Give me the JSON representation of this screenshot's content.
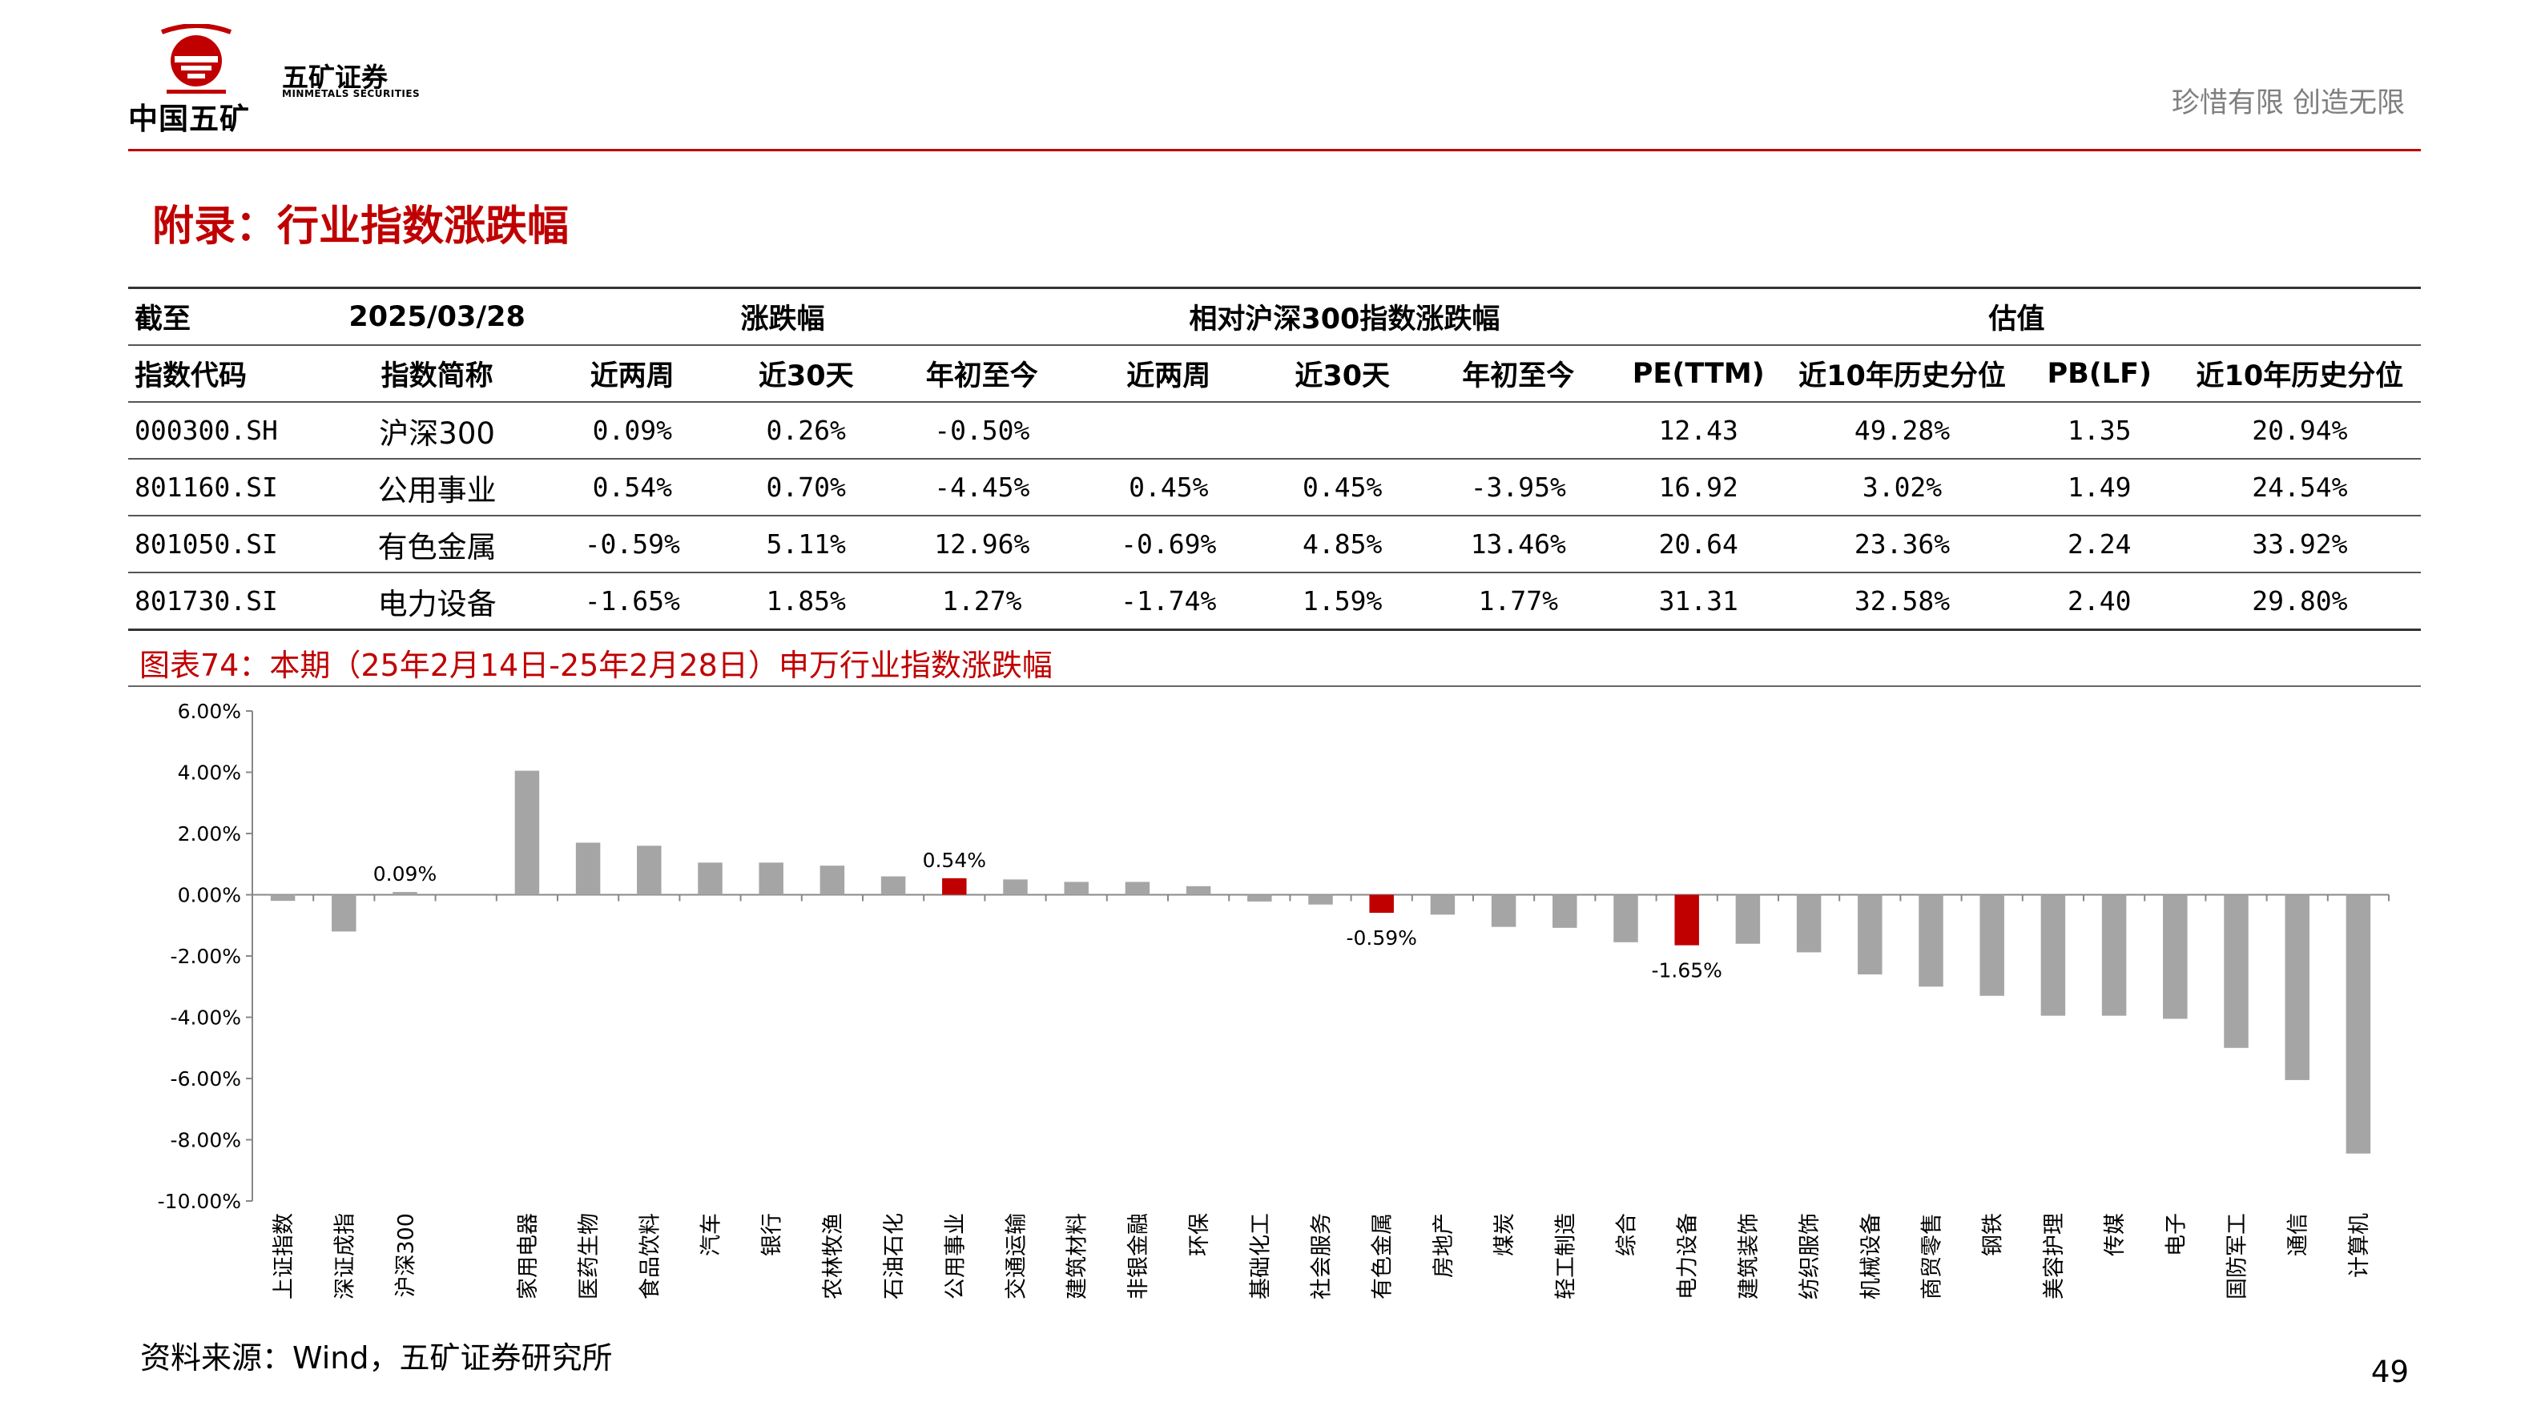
{
  "header": {
    "logo_caption": "中国五矿",
    "brand_cn": "五矿证券",
    "brand_en": "MINMETALS SECURITIES",
    "slogan": "珍惜有限  创造无限"
  },
  "title": "附录：行业指数涨跌幅",
  "table": {
    "row1": {
      "label": "截至",
      "date": "2025/03/28",
      "group1": "涨跌幅",
      "group2": "相对沪深300指数涨跌幅",
      "group3": "估值"
    },
    "columns": [
      "指数代码",
      "指数简称",
      "近两周",
      "近30天",
      "年初至今",
      "近两周",
      "近30天",
      "年初至今",
      "PE(TTM)",
      "近10年历史分位",
      "PB(LF)",
      "近10年历史分位"
    ],
    "rows": [
      [
        "000300.SH",
        "沪深300",
        "0.09%",
        "0.26%",
        "-0.50%",
        "",
        "",
        "",
        "12.43",
        "49.28%",
        "1.35",
        "20.94%"
      ],
      [
        "801160.SI",
        "公用事业",
        "0.54%",
        "0.70%",
        "-4.45%",
        "0.45%",
        "0.45%",
        "-3.95%",
        "16.92",
        "3.02%",
        "1.49",
        "24.54%"
      ],
      [
        "801050.SI",
        "有色金属",
        "-0.59%",
        "5.11%",
        "12.96%",
        "-0.69%",
        "4.85%",
        "13.46%",
        "20.64",
        "23.36%",
        "2.24",
        "33.92%"
      ],
      [
        "801730.SI",
        "电力设备",
        "-1.65%",
        "1.85%",
        "1.27%",
        "-1.74%",
        "1.59%",
        "1.77%",
        "31.31",
        "32.58%",
        "2.40",
        "29.80%"
      ]
    ]
  },
  "figure_caption": "图表74：本期（25年2月14日-25年2月28日）申万行业指数涨跌幅",
  "chart_data": {
    "type": "bar",
    "title": "图表74：本期（25年2月14日-25年2月28日）申万行业指数涨跌幅",
    "xlabel": "",
    "ylabel": "",
    "ylim": [
      -10,
      6
    ],
    "yticks": [
      6,
      4,
      2,
      0,
      -2,
      -4,
      -6,
      -8,
      -10
    ],
    "ytick_labels": [
      "6.00%",
      "4.00%",
      "2.00%",
      "0.00%",
      "-2.00%",
      "-4.00%",
      "-6.00%",
      "-8.00%",
      "-10.00%"
    ],
    "categories": [
      "上证指数",
      "深证成指",
      "沪深300",
      "",
      "家用电器",
      "医药生物",
      "食品饮料",
      "汽车",
      "银行",
      "农林牧渔",
      "石油石化",
      "公用事业",
      "交通运输",
      "建筑材料",
      "非银金融",
      "环保",
      "基础化工",
      "社会服务",
      "有色金属",
      "房地产",
      "煤炭",
      "轻工制造",
      "综合",
      "电力设备",
      "建筑装饰",
      "纺织服饰",
      "机械设备",
      "商贸零售",
      "钢铁",
      "美容护理",
      "传媒",
      "电子",
      "国防军工",
      "通信",
      "计算机"
    ],
    "values": [
      -0.2,
      -1.2,
      0.09,
      null,
      4.05,
      1.7,
      1.6,
      1.05,
      1.05,
      0.95,
      0.6,
      0.54,
      0.5,
      0.42,
      0.42,
      0.28,
      -0.22,
      -0.32,
      -0.59,
      -0.65,
      -1.05,
      -1.08,
      -1.55,
      -1.65,
      -1.6,
      -1.88,
      -2.6,
      -3.0,
      -3.3,
      -3.95,
      -3.95,
      -4.05,
      -5.0,
      -6.05,
      -8.45
    ],
    "highlighted": [
      "公用事业",
      "有色金属",
      "电力设备"
    ],
    "data_labels": [
      {
        "category": "沪深300",
        "text": "0.09%"
      },
      {
        "category": "公用事业",
        "text": "0.54%"
      },
      {
        "category": "有色金属",
        "text": "-0.59%"
      },
      {
        "category": "电力设备",
        "text": "-1.65%"
      }
    ],
    "colors": {
      "normal": "#a5a5a5",
      "highlight": "#c00000",
      "axis": "#888888"
    }
  },
  "source": "资料来源：Wind，五矿证券研究所",
  "page_number": "49"
}
